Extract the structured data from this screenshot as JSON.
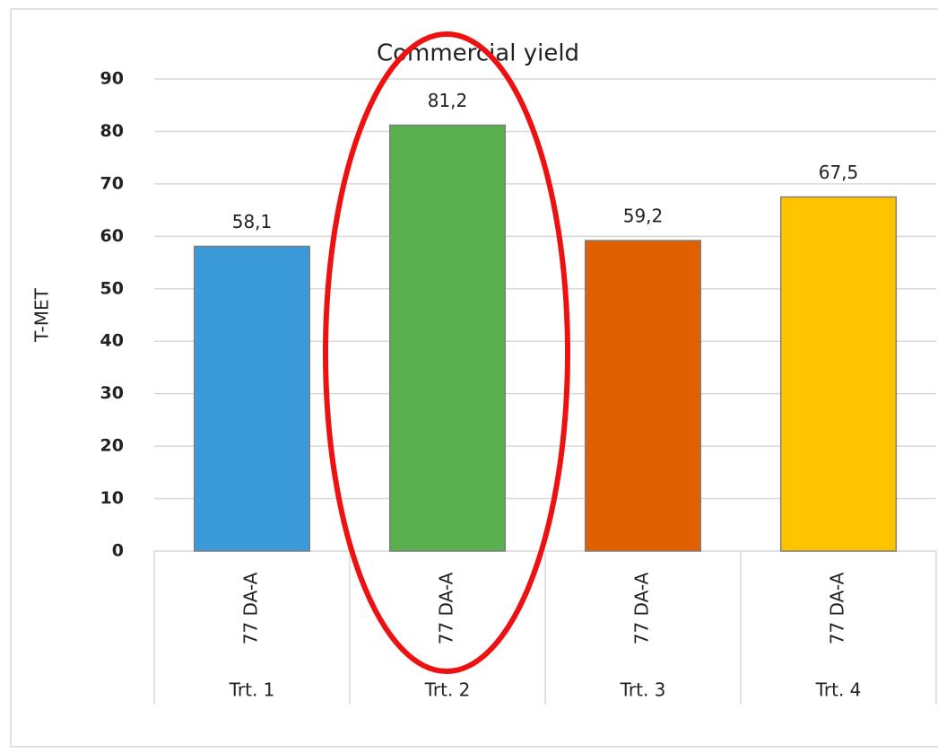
{
  "chart_data": {
    "type": "bar",
    "title": "Commercial yield",
    "y_label": "T-MET",
    "categories": [
      "77 DA-A",
      "77 DA-A",
      "77 DA-A",
      "77 DA-A"
    ],
    "groups": [
      "Trt. 1",
      "Trt. 2",
      "Trt. 3",
      "Trt. 4"
    ],
    "values": [
      58.1,
      81.2,
      59.2,
      67.5
    ],
    "value_labels": [
      "58,1",
      "81,2",
      "59,2",
      "67,5"
    ],
    "colors": [
      "#3a9ad9",
      "#5aaf4e",
      "#e06000",
      "#ffc400"
    ],
    "ylim": [
      0,
      90
    ],
    "yticks": [
      0,
      10,
      20,
      30,
      40,
      50,
      60,
      70,
      80,
      90
    ],
    "grid": true
  }
}
